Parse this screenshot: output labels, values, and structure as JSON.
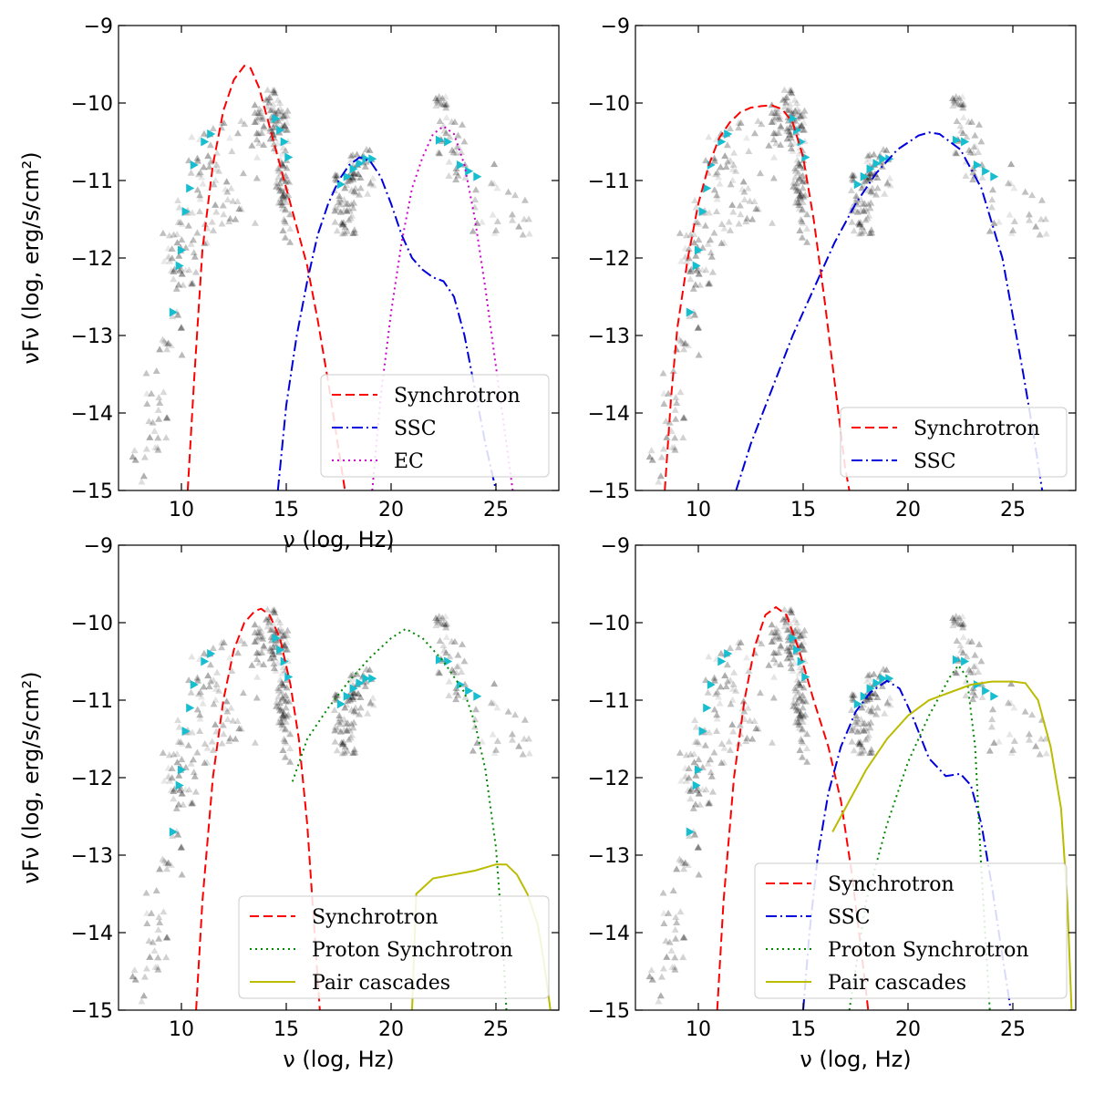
{
  "figure": {
    "colors": {
      "synchrotron": "#ff0000",
      "ssc": "#0000dd",
      "ec": "#cc00cc",
      "proton_synchrotron": "#008800",
      "pair_cascades": "#bbbb00",
      "data_grey": "#000000",
      "data_cyan": "#17becf"
    }
  },
  "chart_data": [
    {
      "type": "line",
      "panel": "top-left",
      "xlabel": "ν (log, Hz)",
      "ylabel": "νFν (log, erg/s/cm²)",
      "xlim": [
        7,
        28
      ],
      "ylim": [
        -15,
        -9
      ],
      "xticks": [
        "10",
        "15",
        "20",
        "25"
      ],
      "yticks": [
        "−9",
        "−10",
        "−11",
        "−12",
        "−13",
        "−14",
        "−15"
      ],
      "legend_position": "bottom-right",
      "series": [
        {
          "name": "Synchrotron",
          "style": "dashed",
          "color": "#ff0000",
          "x": [
            10.3,
            10.6,
            11.0,
            11.5,
            12.0,
            12.5,
            13.0,
            13.3,
            13.7,
            14.2,
            14.8,
            15.5,
            16.0,
            16.5,
            17.0,
            17.4,
            17.8
          ],
          "y": [
            -15.0,
            -13.6,
            -11.9,
            -10.8,
            -10.1,
            -9.7,
            -9.52,
            -9.55,
            -9.8,
            -10.3,
            -10.9,
            -11.6,
            -12.1,
            -12.8,
            -13.6,
            -14.3,
            -15.0
          ]
        },
        {
          "name": "SSC",
          "style": "dashdot",
          "color": "#0000dd",
          "x": [
            14.6,
            15.0,
            15.5,
            16.0,
            16.5,
            17.0,
            17.5,
            18.0,
            18.5,
            19.0,
            19.5,
            20.0,
            20.5,
            21.0,
            21.5,
            22.0,
            22.5,
            23.0,
            23.5,
            24.0,
            24.5,
            25.0
          ],
          "y": [
            -15.0,
            -13.9,
            -13.0,
            -12.3,
            -11.7,
            -11.3,
            -11.0,
            -10.8,
            -10.7,
            -10.75,
            -10.95,
            -11.3,
            -11.7,
            -12.0,
            -12.15,
            -12.25,
            -12.3,
            -12.5,
            -13.0,
            -13.7,
            -14.4,
            -15.0
          ]
        },
        {
          "name": "EC",
          "style": "dotted",
          "color": "#cc00cc",
          "x": [
            19.1,
            19.5,
            20.0,
            20.5,
            21.0,
            21.5,
            22.0,
            22.5,
            23.0,
            23.5,
            24.0,
            24.5,
            25.0,
            25.5,
            25.8
          ],
          "y": [
            -15.0,
            -13.8,
            -12.7,
            -11.8,
            -11.1,
            -10.7,
            -10.4,
            -10.3,
            -10.4,
            -10.8,
            -11.5,
            -12.4,
            -13.4,
            -14.4,
            -15.0
          ]
        }
      ]
    },
    {
      "type": "line",
      "panel": "top-right",
      "xlabel": "",
      "ylabel": "",
      "xlim": [
        7,
        28
      ],
      "ylim": [
        -15,
        -9
      ],
      "xticks": [
        "10",
        "15",
        "20",
        "25"
      ],
      "yticks": [
        "−9",
        "−10",
        "−11",
        "−12",
        "−13",
        "−14",
        "−15"
      ],
      "legend_position": "bottom-right",
      "series": [
        {
          "name": "Synchrotron",
          "style": "dashed",
          "color": "#ff0000",
          "x": [
            8.4,
            8.7,
            9.0,
            9.5,
            10.0,
            10.5,
            11.0,
            11.5,
            12.0,
            12.5,
            13.0,
            13.5,
            14.0,
            14.5,
            15.0,
            15.5,
            16.0,
            16.5,
            17.0,
            17.2
          ],
          "y": [
            -15.0,
            -13.8,
            -12.9,
            -12.0,
            -11.3,
            -10.8,
            -10.45,
            -10.25,
            -10.12,
            -10.06,
            -10.04,
            -10.03,
            -10.08,
            -10.25,
            -10.7,
            -11.5,
            -12.5,
            -13.6,
            -14.7,
            -15.0
          ]
        },
        {
          "name": "SSC",
          "style": "dashdot",
          "color": "#0000dd",
          "x": [
            11.8,
            12.5,
            13.5,
            14.5,
            15.5,
            16.5,
            17.5,
            18.5,
            19.5,
            20.5,
            21.0,
            21.5,
            22.5,
            23.5,
            24.5,
            25.5,
            26.0,
            26.4
          ],
          "y": [
            -15.0,
            -14.4,
            -13.7,
            -13.0,
            -12.4,
            -11.8,
            -11.3,
            -10.9,
            -10.6,
            -10.42,
            -10.38,
            -10.4,
            -10.6,
            -11.1,
            -12.0,
            -13.5,
            -14.3,
            -15.0
          ]
        }
      ]
    },
    {
      "type": "line",
      "panel": "bottom-left",
      "xlabel": "ν (log, Hz)",
      "ylabel": "νFν (log, erg/s/cm²)",
      "xlim": [
        7,
        28
      ],
      "ylim": [
        -15,
        -9
      ],
      "xticks": [
        "10",
        "15",
        "20",
        "25"
      ],
      "yticks": [
        "−9",
        "−10",
        "−11",
        "−12",
        "−13",
        "−14",
        "−15"
      ],
      "legend_position": "bottom-right",
      "series": [
        {
          "name": "Synchrotron",
          "style": "dashed",
          "color": "#ff0000",
          "x": [
            10.7,
            11.0,
            11.5,
            12.0,
            12.5,
            13.0,
            13.5,
            13.8,
            14.2,
            14.7,
            15.2,
            15.6,
            16.0,
            16.3,
            16.6
          ],
          "y": [
            -15.0,
            -13.6,
            -12.0,
            -11.0,
            -10.35,
            -10.0,
            -9.85,
            -9.82,
            -9.9,
            -10.2,
            -10.8,
            -11.5,
            -12.6,
            -13.8,
            -15.0
          ]
        },
        {
          "name": "Proton Synchrotron",
          "style": "dotted",
          "color": "#008800",
          "x": [
            15.3,
            16.0,
            17.0,
            18.0,
            19.0,
            20.0,
            20.7,
            21.5,
            22.5,
            23.5,
            24.0,
            24.5,
            25.0,
            25.3,
            25.5
          ],
          "y": [
            -12.05,
            -11.5,
            -11.1,
            -10.75,
            -10.45,
            -10.2,
            -10.08,
            -10.2,
            -10.5,
            -10.9,
            -11.3,
            -11.9,
            -12.9,
            -14.0,
            -15.0
          ]
        },
        {
          "name": "Pair cascades",
          "style": "solid",
          "color": "#bbbb00",
          "x": [
            21.0,
            21.2,
            22.0,
            23.0,
            24.0,
            25.0,
            25.5,
            26.0,
            26.5,
            27.0,
            27.3,
            27.6
          ],
          "y": [
            -15.0,
            -13.5,
            -13.3,
            -13.25,
            -13.2,
            -13.12,
            -13.12,
            -13.25,
            -13.5,
            -13.9,
            -14.4,
            -15.0
          ]
        }
      ]
    },
    {
      "type": "line",
      "panel": "bottom-right",
      "xlabel": "ν (log, Hz)",
      "ylabel": "",
      "xlim": [
        7,
        28
      ],
      "ylim": [
        -15,
        -9
      ],
      "xticks": [
        "10",
        "15",
        "20",
        "25"
      ],
      "yticks": [
        "−9",
        "−10",
        "−11",
        "−12",
        "−13",
        "−14",
        "−15"
      ],
      "legend_position": "bottom-right",
      "series": [
        {
          "name": "Synchrotron",
          "style": "dashed",
          "color": "#ff0000",
          "x": [
            10.9,
            11.2,
            11.7,
            12.2,
            12.7,
            13.2,
            13.7,
            14.2,
            14.8,
            15.5,
            16.2,
            16.8,
            17.3,
            17.8,
            18.1
          ],
          "y": [
            -15.0,
            -13.6,
            -12.0,
            -11.0,
            -10.3,
            -9.9,
            -9.8,
            -9.9,
            -10.35,
            -11.0,
            -11.6,
            -12.3,
            -13.2,
            -14.3,
            -15.0
          ]
        },
        {
          "name": "SSC",
          "style": "dashdot",
          "color": "#0000dd",
          "x": [
            15.0,
            15.3,
            15.7,
            16.2,
            16.8,
            17.5,
            18.2,
            19.0,
            19.6,
            20.2,
            21.0,
            21.8,
            22.5,
            23.0,
            23.5,
            24.0,
            24.5,
            24.9
          ],
          "y": [
            -15.0,
            -14.0,
            -13.0,
            -12.2,
            -11.6,
            -11.15,
            -10.9,
            -10.75,
            -10.85,
            -11.2,
            -11.75,
            -11.98,
            -11.95,
            -12.1,
            -12.6,
            -13.4,
            -14.3,
            -15.0
          ]
        },
        {
          "name": "Proton Synchrotron",
          "style": "dotted",
          "color": "#008800",
          "x": [
            17.2,
            18.0,
            19.0,
            20.0,
            21.0,
            22.0,
            22.4,
            22.8,
            23.2,
            23.5,
            23.9
          ],
          "y": [
            -15.0,
            -13.6,
            -12.6,
            -11.8,
            -11.2,
            -10.7,
            -10.55,
            -10.7,
            -11.6,
            -13.2,
            -15.0
          ]
        },
        {
          "name": "Pair cascades",
          "style": "solid",
          "color": "#bbbb00",
          "x": [
            16.4,
            17.0,
            18.0,
            19.0,
            20.0,
            21.0,
            22.0,
            23.0,
            24.0,
            25.0,
            25.6,
            26.2,
            26.8,
            27.3,
            27.6,
            27.8
          ],
          "y": [
            -12.7,
            -12.4,
            -11.9,
            -11.5,
            -11.2,
            -11.0,
            -10.9,
            -10.8,
            -10.76,
            -10.76,
            -10.78,
            -11.0,
            -11.6,
            -12.4,
            -13.6,
            -15.0
          ]
        }
      ]
    }
  ]
}
